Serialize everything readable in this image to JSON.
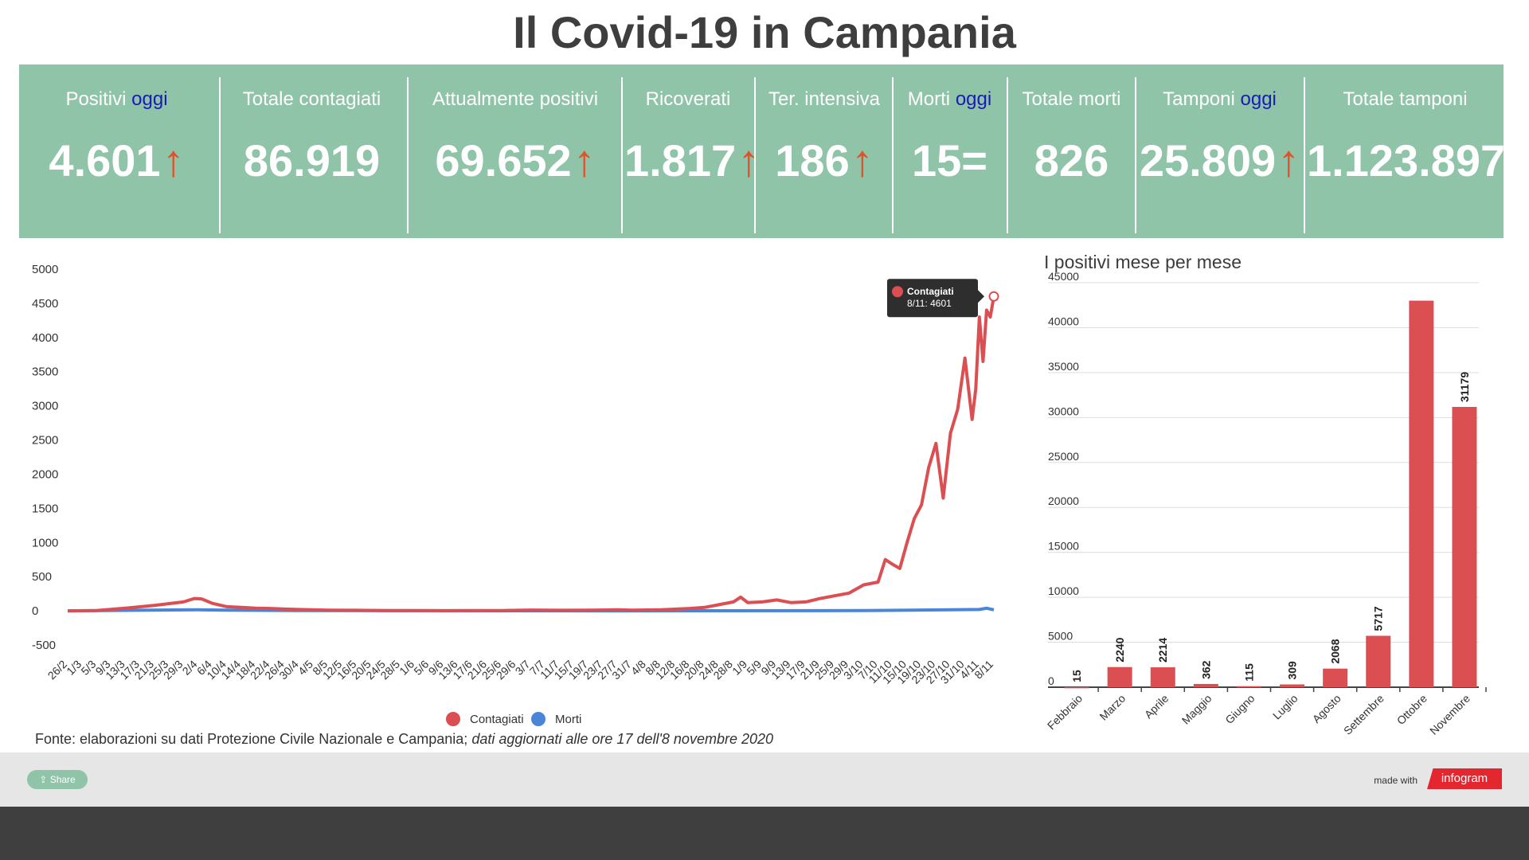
{
  "title": "Il Covid-19 in Campania",
  "stats": [
    {
      "label": "Positivi",
      "today": "oggi",
      "value": "4.601",
      "trend": "↑"
    },
    {
      "label": "Totale contagiati",
      "today": "",
      "value": "86.919",
      "trend": ""
    },
    {
      "label": "Attualmente positivi",
      "today": "",
      "value": "69.652",
      "trend": "↑"
    },
    {
      "label": "Ricoverati",
      "today": "",
      "value": "1.817",
      "trend": "↑"
    },
    {
      "label": "Ter. intensiva",
      "today": "",
      "value": "186",
      "trend": "↑"
    },
    {
      "label": "Morti",
      "today": "oggi",
      "value": "15=",
      "trend": ""
    },
    {
      "label": "Totale morti",
      "today": "",
      "value": "826",
      "trend": ""
    },
    {
      "label": "Tamponi",
      "today": "oggi",
      "value": "25.809",
      "trend": "↑"
    },
    {
      "label": "Totale tamponi",
      "today": "",
      "value": "1.123.897",
      "trend": ""
    }
  ],
  "colors": {
    "panel": "#8fc4a9",
    "contagiati": "#db4f52",
    "morti": "#4a86d8",
    "trend_arrow": "#e0522b",
    "today_text": "#1a1ab8"
  },
  "chart_data": [
    {
      "type": "line",
      "title": "",
      "ylim": [
        -500,
        5000
      ],
      "yticks": [
        5000,
        4500,
        4000,
        3500,
        3000,
        2500,
        2000,
        1500,
        1000,
        500,
        0,
        -500
      ],
      "x_tick_labels": [
        "26/2",
        "1/3",
        "5/3",
        "9/3",
        "13/3",
        "17/3",
        "21/3",
        "25/3",
        "29/3",
        "2/4",
        "6/4",
        "10/4",
        "14/4",
        "18/4",
        "22/4",
        "26/4",
        "30/4",
        "4/5",
        "8/5",
        "12/5",
        "16/5",
        "20/5",
        "24/5",
        "28/5",
        "1/6",
        "5/6",
        "9/6",
        "13/6",
        "17/6",
        "21/6",
        "25/6",
        "29/6",
        "3/7",
        "7/7",
        "11/7",
        "15/7",
        "19/7",
        "23/7",
        "27/7",
        "31/7",
        "4/8",
        "8/8",
        "12/8",
        "16/8",
        "20/8",
        "24/8",
        "28/8",
        "1/9",
        "5/9",
        "9/9",
        "13/9",
        "17/9",
        "21/9",
        "25/9",
        "29/9",
        "3/10",
        "7/10",
        "11/10",
        "15/10",
        "19/10",
        "23/10",
        "27/10",
        "31/10",
        "4/11",
        "8/11"
      ],
      "legend": "bottom",
      "series": [
        {
          "name": "Contagiati",
          "points": [
            [
              "26/2",
              0
            ],
            [
              "5/3",
              5
            ],
            [
              "13/3",
              40
            ],
            [
              "21/3",
              80
            ],
            [
              "29/3",
              130
            ],
            [
              "1/4",
              180
            ],
            [
              "3/4",
              175
            ],
            [
              "6/4",
              110
            ],
            [
              "10/4",
              60
            ],
            [
              "14/4",
              50
            ],
            [
              "18/4",
              40
            ],
            [
              "22/4",
              35
            ],
            [
              "26/4",
              25
            ],
            [
              "30/4",
              20
            ],
            [
              "8/5",
              10
            ],
            [
              "16/5",
              8
            ],
            [
              "24/5",
              5
            ],
            [
              "1/6",
              3
            ],
            [
              "9/6",
              2
            ],
            [
              "17/6",
              5
            ],
            [
              "25/6",
              4
            ],
            [
              "3/7",
              12
            ],
            [
              "11/7",
              8
            ],
            [
              "19/7",
              10
            ],
            [
              "27/7",
              15
            ],
            [
              "31/7",
              10
            ],
            [
              "8/8",
              15
            ],
            [
              "16/8",
              35
            ],
            [
              "20/8",
              50
            ],
            [
              "24/8",
              90
            ],
            [
              "28/8",
              130
            ],
            [
              "30/8",
              200
            ],
            [
              "1/9",
              120
            ],
            [
              "5/9",
              130
            ],
            [
              "9/9",
              160
            ],
            [
              "13/9",
              120
            ],
            [
              "17/9",
              130
            ],
            [
              "21/9",
              180
            ],
            [
              "25/9",
              220
            ],
            [
              "29/9",
              260
            ],
            [
              "3/10",
              380
            ],
            [
              "7/10",
              420
            ],
            [
              "9/10",
              750
            ],
            [
              "11/10",
              680
            ],
            [
              "13/10",
              620
            ],
            [
              "15/10",
              1000
            ],
            [
              "17/10",
              1350
            ],
            [
              "19/10",
              1550
            ],
            [
              "21/10",
              2100
            ],
            [
              "23/10",
              2450
            ],
            [
              "25/10",
              1650
            ],
            [
              "27/10",
              2600
            ],
            [
              "29/10",
              2950
            ],
            [
              "31/10",
              3700
            ],
            [
              "2/11",
              2800
            ],
            [
              "3/11",
              3250
            ],
            [
              "4/11",
              4300
            ],
            [
              "5/11",
              3650
            ],
            [
              "6/11",
              4400
            ],
            [
              "7/11",
              4300
            ],
            [
              "8/11",
              4601
            ]
          ]
        },
        {
          "name": "Morti",
          "points": [
            [
              "26/2",
              0
            ],
            [
              "2/4",
              15
            ],
            [
              "10/4",
              10
            ],
            [
              "30/4",
              5
            ],
            [
              "31/7",
              0
            ],
            [
              "3/10",
              3
            ],
            [
              "27/10",
              15
            ],
            [
              "4/11",
              20
            ],
            [
              "6/11",
              38
            ],
            [
              "8/11",
              15
            ]
          ]
        }
      ],
      "tooltip": {
        "series": "Contagiati",
        "text": "8/11: 4601"
      }
    },
    {
      "type": "bar",
      "title": "I positivi mese per mese",
      "categories": [
        "Febbraio",
        "Marzo",
        "Aprile",
        "Maggio",
        "Giugno",
        "Luglio",
        "Agosto",
        "Settembre",
        "Ottobre",
        "Novembre"
      ],
      "values": [
        15,
        2240,
        2214,
        362,
        115,
        309,
        2068,
        5717,
        43000,
        31179
      ],
      "data_labels": [
        "15",
        "2240",
        "2214",
        "362",
        "115",
        "309",
        "2068",
        "5717",
        "",
        "31179"
      ],
      "ylim": [
        0,
        45000
      ],
      "yticks": [
        45000,
        40000,
        35000,
        30000,
        25000,
        20000,
        15000,
        10000,
        5000,
        0
      ]
    }
  ],
  "source": {
    "text": "Fonte: elaborazioni su dati Protezione Civile Nazionale e Campania; ",
    "italic": "dati aggiornati alle ore 17 dell'8 novembre 2020"
  },
  "footer": {
    "share_label": "Share",
    "made_with": "made with",
    "brand": "infogram"
  }
}
